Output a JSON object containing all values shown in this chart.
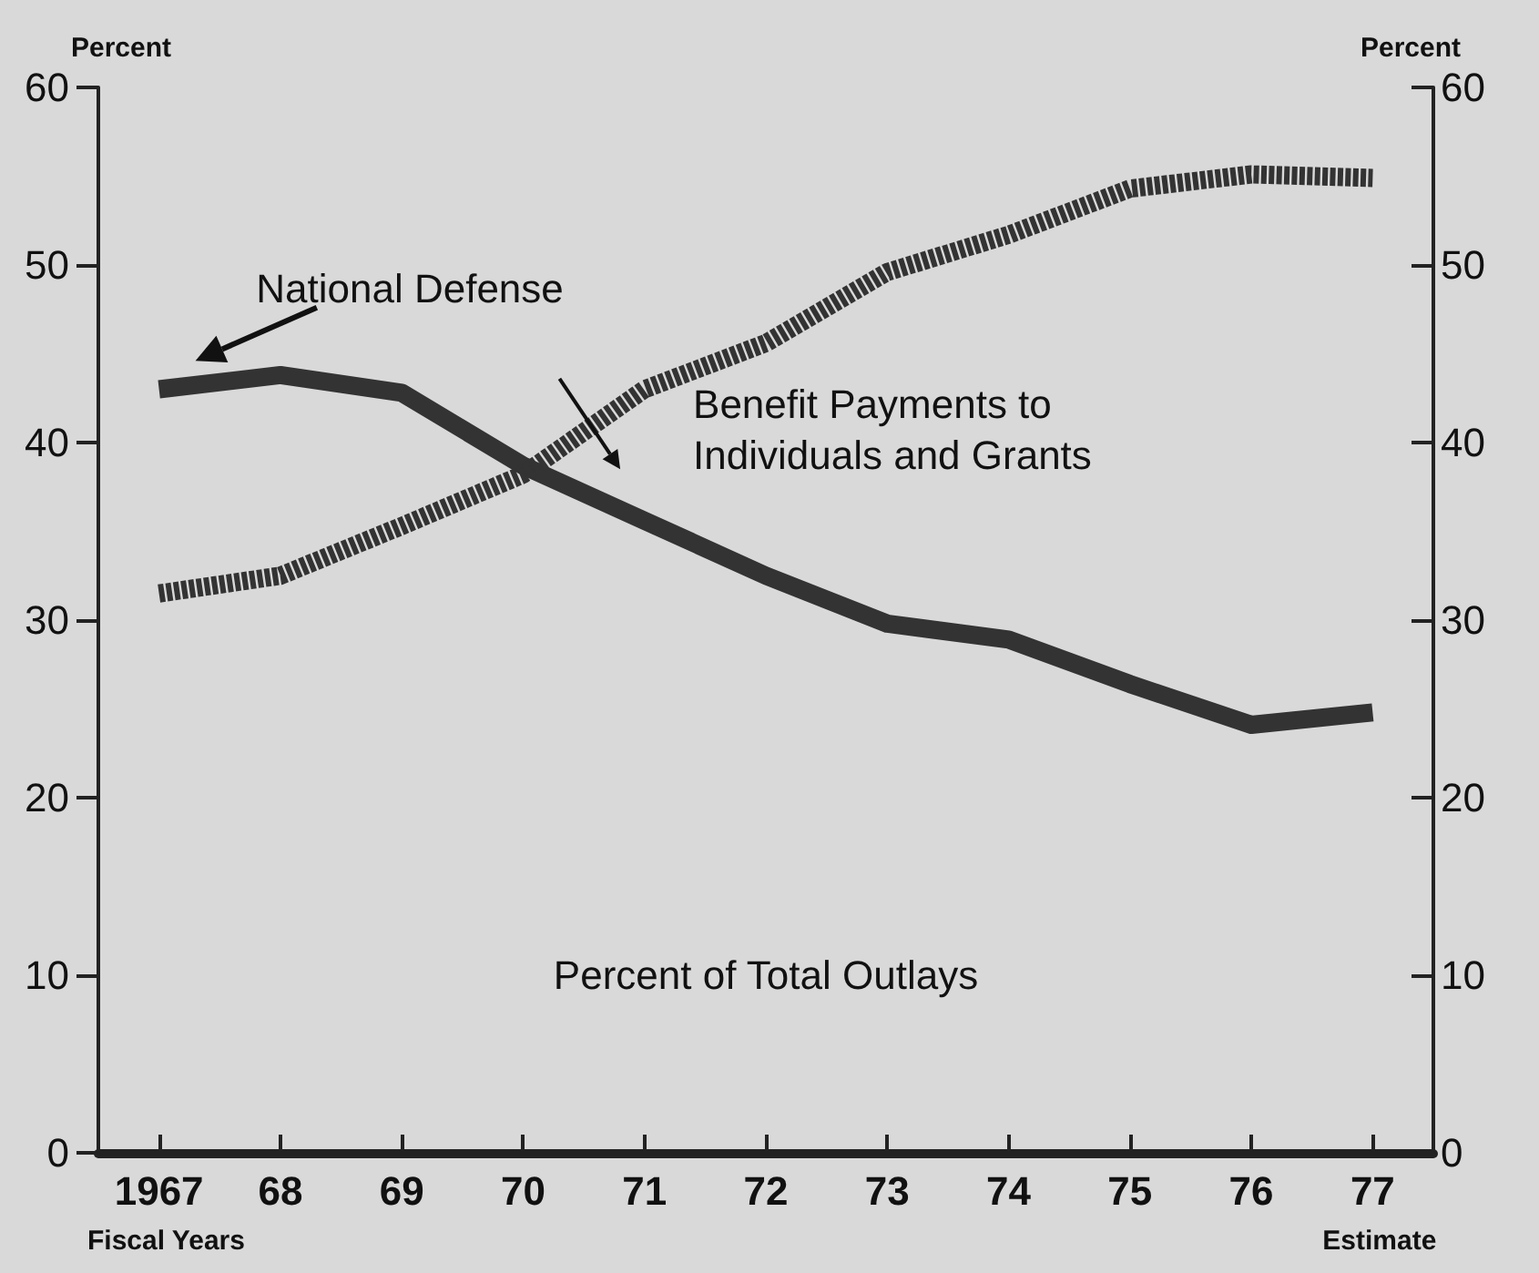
{
  "chart_data": {
    "type": "line",
    "ylabel": "Percent",
    "y2label": "Percent",
    "x": [
      1967,
      1968,
      1969,
      1970,
      1971,
      1972,
      1973,
      1974,
      1975,
      1976,
      1977
    ],
    "xlim": [
      1966.5,
      1977.5
    ],
    "xticks": [
      {
        "value": 1967,
        "label": "1967"
      },
      {
        "value": 1968,
        "label": "68"
      },
      {
        "value": 1969,
        "label": "69"
      },
      {
        "value": 1970,
        "label": "70"
      },
      {
        "value": 1971,
        "label": "71"
      },
      {
        "value": 1972,
        "label": "72"
      },
      {
        "value": 1973,
        "label": "73"
      },
      {
        "value": 1974,
        "label": "74"
      },
      {
        "value": 1975,
        "label": "75"
      },
      {
        "value": 1976,
        "label": "76"
      },
      {
        "value": 1977,
        "label": "77"
      }
    ],
    "ylim": [
      0,
      60
    ],
    "yticks": [
      0,
      10,
      20,
      30,
      40,
      50,
      60
    ],
    "y2lim": [
      0,
      60
    ],
    "y2ticks": [
      0,
      10,
      20,
      30,
      40,
      50,
      60
    ],
    "series": [
      {
        "name": "National Defense",
        "color": "#333333",
        "line_style": "solid",
        "values": [
          43,
          43.8,
          42.8,
          38.7,
          35.6,
          32.5,
          29.8,
          28.9,
          26.4,
          24.1,
          24.8
        ]
      },
      {
        "name": "Benefit Payments to\nIndividuals and Grants",
        "color": "#333333",
        "line_style": "dashed",
        "values": [
          31.5,
          32.5,
          35.3,
          38.2,
          43,
          45.6,
          49.6,
          51.7,
          54.3,
          55.1,
          54.9
        ]
      }
    ],
    "annotations": [
      "Percent of Total Outlays",
      "Fiscal Years",
      "Estimate"
    ],
    "grid": false,
    "legend": false,
    "marker": "none"
  }
}
